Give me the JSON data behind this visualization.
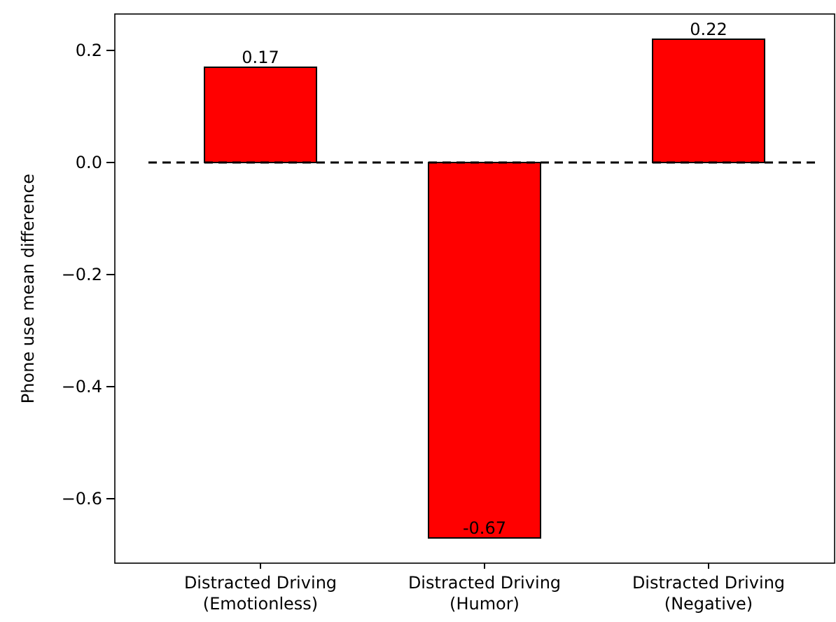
{
  "chart_data": {
    "type": "bar",
    "ylabel": "Phone use mean difference",
    "categories": [
      "Distracted Driving\n(Emotionless)",
      "Distracted Driving\n(Humor)",
      "Distracted Driving\n(Negative)"
    ],
    "values": [
      0.17,
      -0.67,
      0.22
    ],
    "color": "#ff0000",
    "data_labels": true,
    "ylim": [
      -0.715,
      0.265
    ],
    "yticks": [
      {
        "value": 0.2,
        "label": "0.2"
      },
      {
        "value": 0,
        "label": "0.0"
      },
      {
        "value": -0.2,
        "label": "−0.2"
      },
      {
        "value": -0.4,
        "label": "−0.4"
      },
      {
        "value": -0.6,
        "label": "−0.6"
      }
    ],
    "ref_lines": [
      {
        "axis": "y",
        "value": 0,
        "color": "#000000",
        "line_style": "dashed"
      }
    ],
    "grid": false
  }
}
